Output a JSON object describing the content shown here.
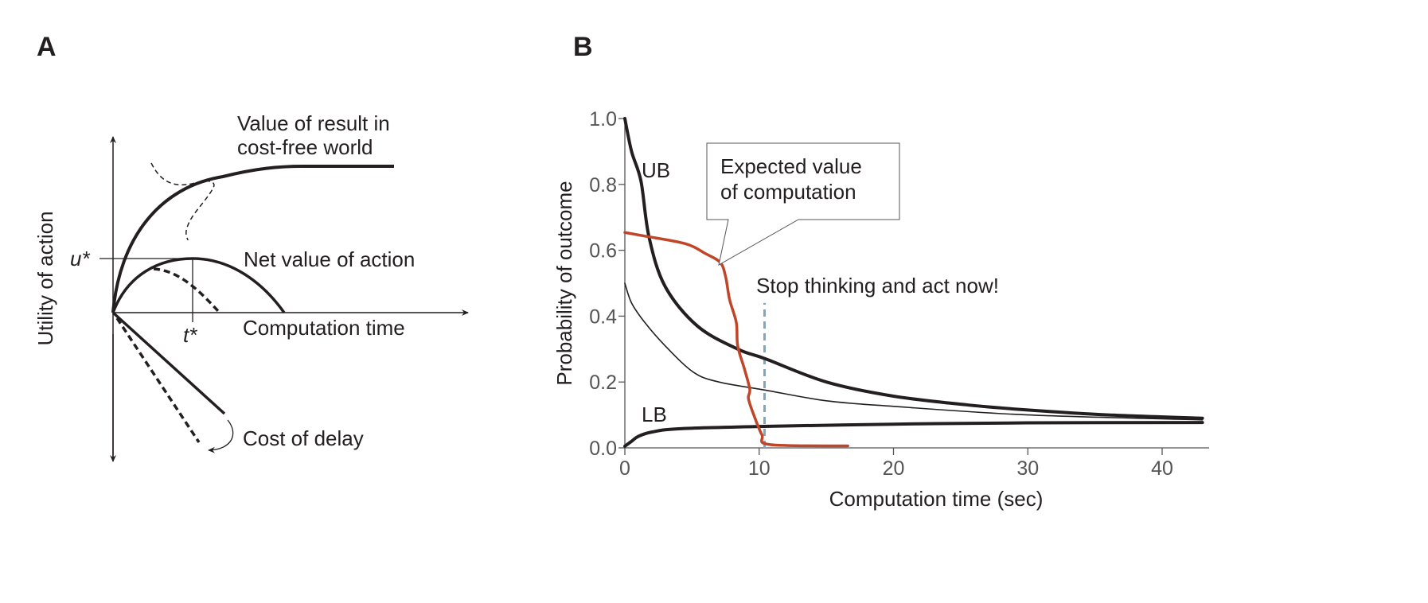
{
  "panel_a": {
    "label": "A",
    "y_axis_label": "Utility of action",
    "x_axis_label": "Computation time",
    "u_star": "u*",
    "t_star": "t*",
    "curve_labels": {
      "value_line1": "Value of result in",
      "value_line2": "cost-free world",
      "net": "Net value of action",
      "cost": "Cost of delay"
    }
  },
  "chart_data": {
    "type": "line",
    "panel_label": "B",
    "xlabel": "Computation time (sec)",
    "ylabel": "Probability of outcome",
    "xlim": [
      0,
      43.5
    ],
    "ylim": [
      0,
      1.0
    ],
    "x_ticks": [
      0,
      10,
      20,
      30,
      40
    ],
    "y_ticks": [
      "0.0",
      "0.2",
      "0.4",
      "0.6",
      "0.8",
      "1.0"
    ],
    "grid": false,
    "colors": {
      "bounds": "#231f20",
      "evc": "#c0462a",
      "stop": "#7fa7bd"
    },
    "series": [
      {
        "name": "UB",
        "x": [
          0,
          0.5,
          1.2,
          1.8,
          3,
          5.4,
          8.4,
          10.5,
          15,
          20,
          25.6,
          30,
          36,
          43
        ],
        "y": [
          1.0,
          0.9,
          0.81,
          0.64,
          0.49,
          0.37,
          0.3,
          0.27,
          0.2,
          0.157,
          0.13,
          0.115,
          0.1,
          0.09
        ]
      },
      {
        "name": "",
        "x": [
          0,
          0.5,
          1.5,
          3,
          5.1,
          7,
          10.5,
          15,
          20,
          30,
          43
        ],
        "y": [
          0.5,
          0.44,
          0.38,
          0.31,
          0.23,
          0.2,
          0.175,
          0.143,
          0.126,
          0.1,
          0.085
        ]
      },
      {
        "name": "LB",
        "x": [
          0,
          0.5,
          1,
          2,
          4,
          10,
          20,
          30,
          43
        ],
        "y": [
          0.005,
          0.02,
          0.035,
          0.048,
          0.058,
          0.065,
          0.072,
          0.076,
          0.077
        ]
      },
      {
        "name": "Expected value of computation",
        "x": [
          0,
          1.5,
          4.5,
          6,
          7.1,
          7.5,
          7.8,
          8.3,
          8.4,
          8.9,
          9.3,
          9.2,
          9.6,
          10.2,
          10.8,
          16.6
        ],
        "y": [
          0.654,
          0.643,
          0.62,
          0.59,
          0.563,
          0.52,
          0.45,
          0.38,
          0.31,
          0.24,
          0.178,
          0.15,
          0.1,
          0.04,
          0.01,
          0.006
        ]
      }
    ],
    "annotations": {
      "ub": "UB",
      "lb": "LB",
      "evc_line1": "Expected value",
      "evc_line2": "of computation",
      "stop": "Stop thinking and act now!",
      "stop_x": 10.4,
      "stop_y_top": 0.44
    }
  }
}
